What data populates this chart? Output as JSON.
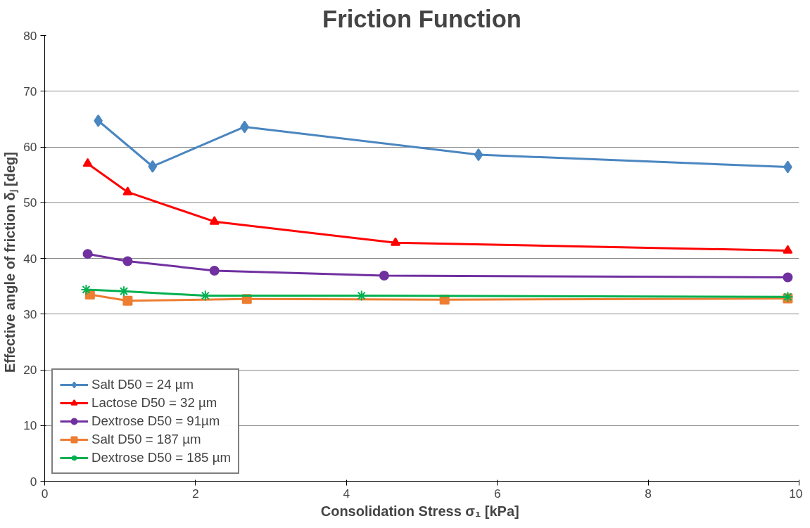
{
  "chart_data": {
    "type": "line",
    "title": "Friction Function",
    "xlabel": "Consolidation  Stress σ₁ [kPa]",
    "ylabel": "Effective  angle of friction  δⱼ [deg]",
    "xlim": [
      0,
      10
    ],
    "xticks": [
      0,
      2,
      4,
      6,
      8,
      10
    ],
    "ylim": [
      0,
      80
    ],
    "yticks": [
      0,
      10,
      20,
      30,
      40,
      50,
      60,
      70,
      80
    ],
    "grid": "y",
    "legend": "bottom left",
    "series": [
      {
        "name": "Salt D50 = 24 µm",
        "color": "#4a86c0",
        "marker": "diamond",
        "x": [
          0.71,
          1.43,
          2.65,
          5.75,
          9.85
        ],
        "values": [
          64.7,
          56.5,
          63.6,
          58.6,
          56.4
        ]
      },
      {
        "name": "Lactose D50 = 32 µm",
        "color": "#ff0000",
        "marker": "triangle",
        "x": [
          0.57,
          1.1,
          2.25,
          4.65,
          9.85
        ],
        "values": [
          57.0,
          51.9,
          46.6,
          42.8,
          41.4
        ]
      },
      {
        "name": "Dextrose D50 = 91µm",
        "color": "#7030a0",
        "marker": "circle",
        "x": [
          0.57,
          1.1,
          2.25,
          4.5,
          9.85
        ],
        "values": [
          40.8,
          39.5,
          37.8,
          36.9,
          36.6
        ]
      },
      {
        "name": "Salt D50 = 187 µm",
        "color": "#ed7d31",
        "marker": "square",
        "x": [
          0.6,
          1.1,
          2.68,
          5.3,
          9.85
        ],
        "values": [
          33.5,
          32.4,
          32.7,
          32.6,
          32.8
        ]
      },
      {
        "name": "Dextrose D50 = 185 µm",
        "color": "#00b050",
        "marker": "cross",
        "x": [
          0.55,
          1.05,
          2.13,
          4.2,
          9.85
        ],
        "values": [
          34.4,
          34.1,
          33.3,
          33.3,
          33.1
        ]
      }
    ]
  }
}
